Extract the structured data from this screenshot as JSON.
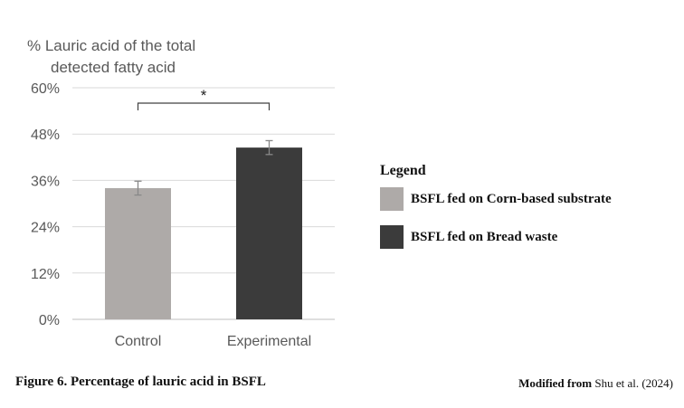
{
  "chart_data": {
    "type": "bar",
    "title": "% Lauric acid of the total detected fatty acid",
    "title_lines": [
      "% Lauric acid of the total",
      "detected fatty acid"
    ],
    "categories": [
      "Control",
      "Experimental"
    ],
    "values": [
      34,
      44.5
    ],
    "error": [
      1.8,
      1.8
    ],
    "colors": [
      "#aeaaa8",
      "#3b3b3b"
    ],
    "ylim": [
      0,
      60
    ],
    "yticks": [
      0,
      12,
      24,
      36,
      48,
      60
    ],
    "ytick_labels": [
      "0%",
      "12%",
      "24%",
      "36%",
      "48%",
      "60%"
    ],
    "grid": true,
    "significance": {
      "between": [
        "Control",
        "Experimental"
      ],
      "label": "*"
    },
    "legend": {
      "title": "Legend",
      "entries": [
        {
          "label": "BSFL fed on Corn-based substrate",
          "color": "#aeaaa8"
        },
        {
          "label": "BSFL fed on Bread waste",
          "color": "#3b3b3b"
        }
      ],
      "placement": "right"
    }
  },
  "caption": "Figure 6. Percentage of lauric acid in BSFL",
  "credit": {
    "prefix": "Modified from",
    "source": "Shu et al. (2024)"
  }
}
